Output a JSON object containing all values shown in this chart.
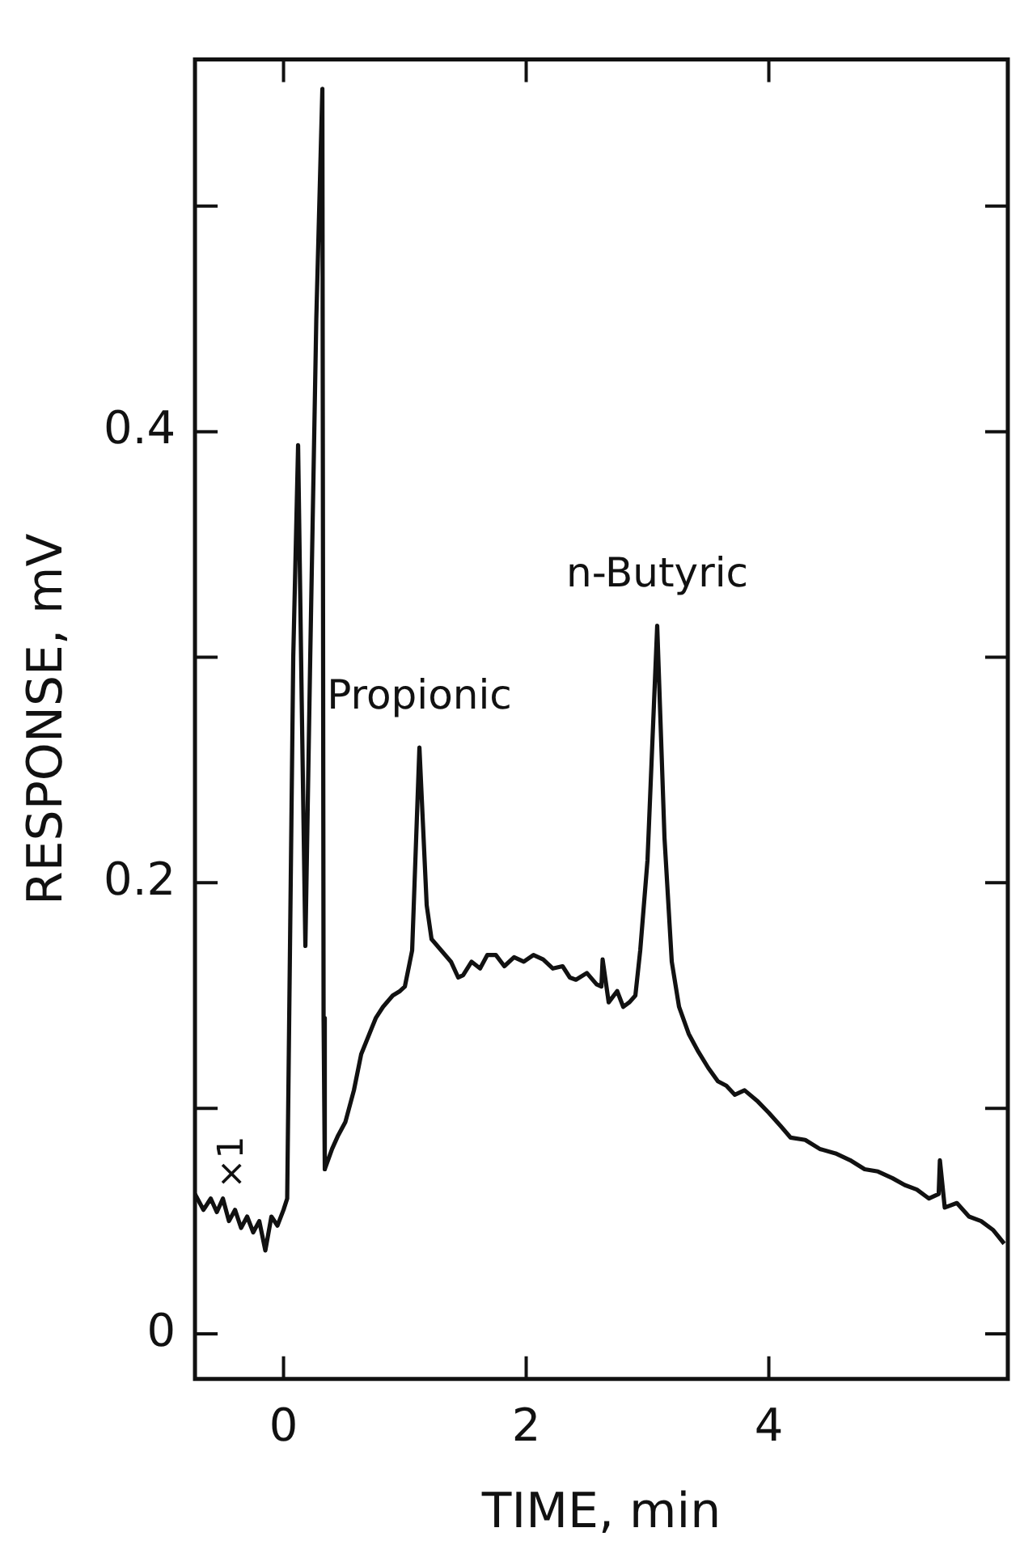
{
  "chart_data": {
    "type": "line",
    "xlabel": "TIME, min",
    "ylabel": "RESPONSE, mV",
    "xlim": [
      -0.73,
      5.97
    ],
    "ylim": [
      -0.02,
      0.565
    ],
    "xticks": [
      0,
      2,
      4
    ],
    "yticks": [
      0,
      {
        "value": 0.1,
        "label": null
      },
      0.2,
      {
        "value": 0.3,
        "label": null
      },
      0.4,
      {
        "value": 0.5,
        "label": null
      }
    ],
    "marker": "none",
    "line_style": "solid",
    "legend": false,
    "annotations": [
      {
        "text": "Propionic",
        "x": 1.12,
        "y": 0.26
      },
      {
        "text": "n-Butyric",
        "x": 3.08,
        "y": 0.314
      },
      "×1"
    ],
    "series": [
      {
        "color": "#111111",
        "x": [
          -0.73,
          -0.66,
          -0.6,
          -0.55,
          -0.5,
          -0.45,
          -0.4,
          -0.35,
          -0.3,
          -0.25,
          -0.2,
          -0.15,
          -0.1,
          -0.05,
          0.0,
          0.03,
          0.08,
          0.12,
          0.15,
          0.18,
          0.22,
          0.27,
          0.32,
          0.33,
          0.34,
          0.4,
          0.45,
          0.51,
          0.58,
          0.64,
          0.7,
          0.76,
          0.82,
          0.9,
          0.96,
          1.0,
          1.06,
          1.12,
          1.18,
          1.22,
          1.3,
          1.38,
          1.44,
          1.48,
          1.55,
          1.62,
          1.68,
          1.75,
          1.82,
          1.9,
          1.98,
          2.06,
          2.14,
          2.22,
          2.3,
          2.36,
          2.41,
          2.5,
          2.58,
          2.62,
          2.63,
          2.68,
          2.75,
          2.8,
          2.85,
          2.9,
          2.94,
          3.0,
          3.08,
          3.14,
          3.2,
          3.26,
          3.34,
          3.42,
          3.5,
          3.58,
          3.65,
          3.72,
          3.8,
          3.91,
          4.0,
          4.1,
          4.18,
          4.3,
          4.42,
          4.55,
          4.67,
          4.79,
          4.9,
          5.02,
          5.12,
          5.22,
          5.32,
          5.4,
          5.41,
          5.45,
          5.55,
          5.65,
          5.75,
          5.85,
          5.94
        ],
        "values": [
          0.062,
          0.055,
          0.06,
          0.054,
          0.06,
          0.05,
          0.055,
          0.047,
          0.052,
          0.045,
          0.05,
          0.037,
          0.052,
          0.048,
          0.055,
          0.06,
          0.3,
          0.394,
          0.28,
          0.172,
          0.3,
          0.45,
          0.552,
          0.14,
          0.073,
          0.082,
          0.088,
          0.094,
          0.108,
          0.124,
          0.132,
          0.14,
          0.145,
          0.15,
          0.152,
          0.154,
          0.17,
          0.26,
          0.19,
          0.175,
          0.17,
          0.165,
          0.158,
          0.159,
          0.165,
          0.162,
          0.168,
          0.168,
          0.163,
          0.167,
          0.165,
          0.168,
          0.166,
          0.162,
          0.163,
          0.158,
          0.157,
          0.16,
          0.155,
          0.154,
          0.166,
          0.147,
          0.152,
          0.145,
          0.147,
          0.15,
          0.17,
          0.21,
          0.314,
          0.22,
          0.165,
          0.145,
          0.133,
          0.125,
          0.118,
          0.112,
          0.11,
          0.106,
          0.108,
          0.103,
          0.098,
          0.092,
          0.087,
          0.086,
          0.082,
          0.08,
          0.077,
          0.073,
          0.072,
          0.069,
          0.066,
          0.064,
          0.06,
          0.062,
          0.077,
          0.056,
          0.058,
          0.052,
          0.05,
          0.046,
          0.04
        ]
      }
    ]
  }
}
